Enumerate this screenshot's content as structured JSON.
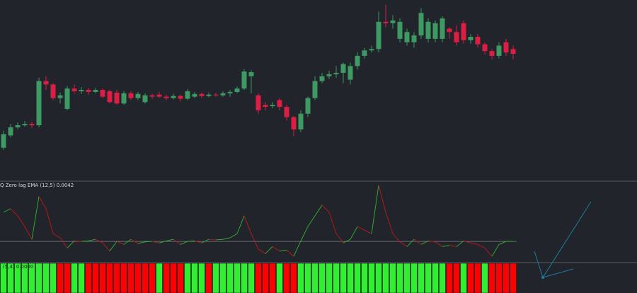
{
  "chart_data": [
    {
      "type": "candlestick",
      "open": [
        45,
        63,
        75,
        78,
        80,
        78,
        143,
        138,
        118,
        102,
        132,
        128,
        130,
        127,
        130,
        128,
        126,
        110,
        125,
        118,
        112,
        122,
        123,
        120,
        118,
        121,
        117,
        120,
        124,
        121,
        123,
        122,
        125,
        127,
        132,
        150,
        122,
        108,
        106,
        115,
        105,
        90,
        72,
        95,
        118,
        143,
        150,
        153,
        155,
        145,
        165,
        180,
        188,
        190,
        230,
        228,
        205,
        200,
        200,
        210,
        205,
        205,
        205,
        220,
        215,
        228,
        203,
        208,
        197,
        187,
        180,
        200,
        190
      ],
      "high": [
        70,
        80,
        82,
        84,
        83,
        148,
        150,
        140,
        126,
        136,
        138,
        134,
        133,
        133,
        132,
        130,
        130,
        128,
        128,
        127,
        125,
        124,
        127,
        123,
        124,
        123,
        131,
        127,
        126,
        126,
        126,
        128,
        130,
        135,
        160,
        159,
        125,
        112,
        112,
        118,
        108,
        92,
        100,
        120,
        150,
        155,
        158,
        165,
        170,
        170,
        185,
        192,
        195,
        245,
        255,
        240,
        235,
        220,
        215,
        250,
        235,
        232,
        238,
        222,
        225,
        232,
        212,
        212,
        200,
        190,
        200,
        205,
        195
      ],
      "low": [
        42,
        60,
        72,
        76,
        74,
        75,
        130,
        115,
        110,
        100,
        125,
        124,
        123,
        125,
        118,
        110,
        108,
        108,
        115,
        115,
        110,
        117,
        118,
        115,
        116,
        113,
        115,
        118,
        118,
        119,
        120,
        120,
        120,
        125,
        130,
        125,
        95,
        100,
        103,
        100,
        85,
        62,
        68,
        90,
        115,
        140,
        146,
        148,
        140,
        138,
        160,
        176,
        185,
        185,
        222,
        220,
        200,
        195,
        192,
        205,
        200,
        200,
        200,
        205,
        195,
        198,
        198,
        192,
        182,
        175,
        176,
        180,
        175
      ],
      "close": [
        65,
        75,
        78,
        80,
        78,
        143,
        138,
        118,
        122,
        132,
        128,
        130,
        127,
        130,
        120,
        112,
        110,
        125,
        118,
        124,
        122,
        120,
        120,
        118,
        121,
        117,
        128,
        124,
        121,
        123,
        122,
        125,
        127,
        132,
        157,
        156,
        100,
        105,
        108,
        105,
        90,
        72,
        95,
        118,
        143,
        150,
        153,
        155,
        168,
        165,
        180,
        188,
        190,
        230,
        228,
        232,
        230,
        215,
        210,
        243,
        230,
        228,
        235,
        215,
        200,
        203,
        208,
        197,
        187,
        180,
        195,
        185,
        183
      ],
      "up_color": "#3c9a62",
      "down_color": "#dc1e45",
      "ylim": [
        0,
        260
      ]
    },
    {
      "type": "line",
      "title": "Q Zero lag EMA (12,5) 0.0042",
      "values": [
        0.0057,
        0.0064,
        0.005,
        0.0029,
        0.0004,
        0.0088,
        0.0064,
        0.0015,
        0.0007,
        -0.0013,
        0.0001,
        0.0,
        0.0001,
        0.0004,
        -0.0003,
        -0.0019,
        0.0,
        -0.0006,
        0.0004,
        -0.0004,
        -0.0001,
        0.0,
        -0.0003,
        0.0001,
        0.0004,
        -0.0006,
        0.0,
        0.0001,
        -0.0003,
        0.0004,
        0.0003,
        0.0004,
        0.0007,
        0.0015,
        0.005,
        0.0015,
        -0.0015,
        -0.0024,
        -0.001,
        -0.0019,
        -0.0017,
        -0.0029,
        0.0001,
        0.0029,
        0.005,
        0.0071,
        0.0057,
        0.0015,
        -0.0003,
        0.0004,
        0.0029,
        0.0022,
        0.0015,
        0.011,
        0.0057,
        0.0015,
        -0.0001,
        -0.001,
        0.0004,
        -0.0006,
        0.0001,
        -0.0001,
        -0.001,
        -0.0008,
        -0.001,
        0.0001,
        -0.0003,
        -0.0006,
        -0.0013,
        -0.0029,
        -0.0006,
        0.0,
        0.0
      ],
      "up_color": "#2fb52f",
      "down_color": "#c21818",
      "ylim": [
        -0.004,
        0.0115
      ],
      "level": 0,
      "level_color": "#7c7f86"
    },
    {
      "type": "bar",
      "title": "(5,4) 0.0000",
      "values": [
        1,
        1,
        1,
        1,
        1,
        1,
        1,
        1,
        -1,
        -1,
        1,
        1,
        -1,
        -1,
        -1,
        -1,
        -1,
        -1,
        -1,
        -1,
        -1,
        -1,
        1,
        -1,
        -1,
        -1,
        1,
        1,
        1,
        -1,
        1,
        1,
        1,
        1,
        1,
        1,
        -1,
        -1,
        -1,
        1,
        -1,
        -1,
        1,
        1,
        1,
        1,
        1,
        1,
        1,
        1,
        1,
        1,
        1,
        1,
        1,
        1,
        1,
        1,
        1,
        1,
        1,
        1,
        1,
        -1,
        -1,
        1,
        -1,
        -1,
        1,
        -1,
        -1,
        -1,
        -1
      ],
      "up_color": "#2ef02e",
      "down_color": "#ff0000",
      "ylim": [
        -1,
        1
      ]
    }
  ]
}
